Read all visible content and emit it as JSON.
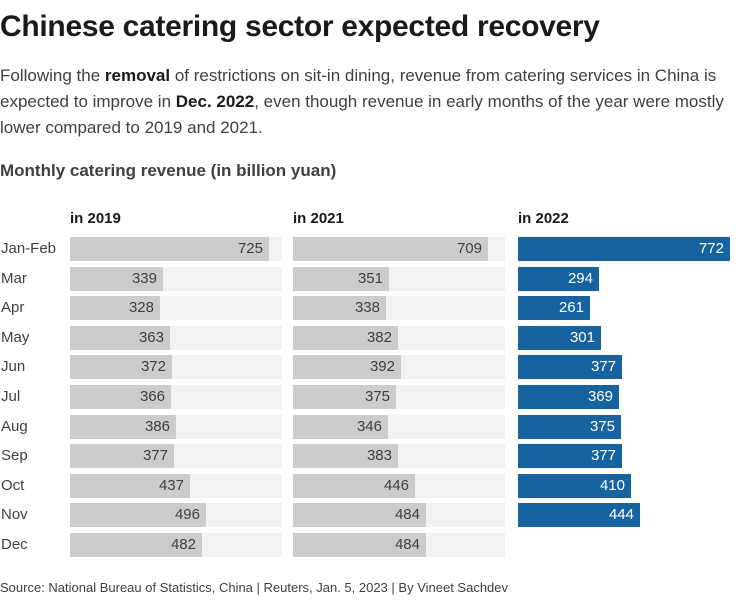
{
  "title": "Chinese catering sector expected recovery",
  "subtitle": {
    "part1": "Following the ",
    "bold1": "removal",
    "part2": " of restrictions on sit-in dining, revenue from catering services in China is expected to improve in ",
    "bold2": "Dec. 2022",
    "part3": ", even though revenue in early months of the year were mostly lower compared to 2019 and 2021."
  },
  "source": "Source: National Bureau of Statistics, China | Reuters, Jan. 5, 2023 | By Vineet Sachdev",
  "colors": {
    "grey_bar": "#cccccc",
    "blue_bar": "#1763a0",
    "track": "#f2f2f2"
  },
  "chart_data": {
    "type": "bar",
    "orientation": "horizontal",
    "title": "Monthly catering revenue (in billion yuan)",
    "categories": [
      "Jan-Feb",
      "Mar",
      "Apr",
      "May",
      "Jun",
      "Jul",
      "Aug",
      "Sep",
      "Oct",
      "Nov",
      "Dec"
    ],
    "xlim": [
      0,
      772
    ],
    "series": [
      {
        "name": "in 2019",
        "values": [
          725,
          339,
          328,
          363,
          372,
          366,
          386,
          377,
          437,
          496,
          482
        ]
      },
      {
        "name": "in 2021",
        "values": [
          709,
          351,
          338,
          382,
          392,
          375,
          346,
          383,
          446,
          484,
          484
        ]
      },
      {
        "name": "in 2022",
        "values": [
          772,
          294,
          261,
          301,
          377,
          369,
          375,
          377,
          410,
          444,
          null
        ]
      }
    ]
  }
}
